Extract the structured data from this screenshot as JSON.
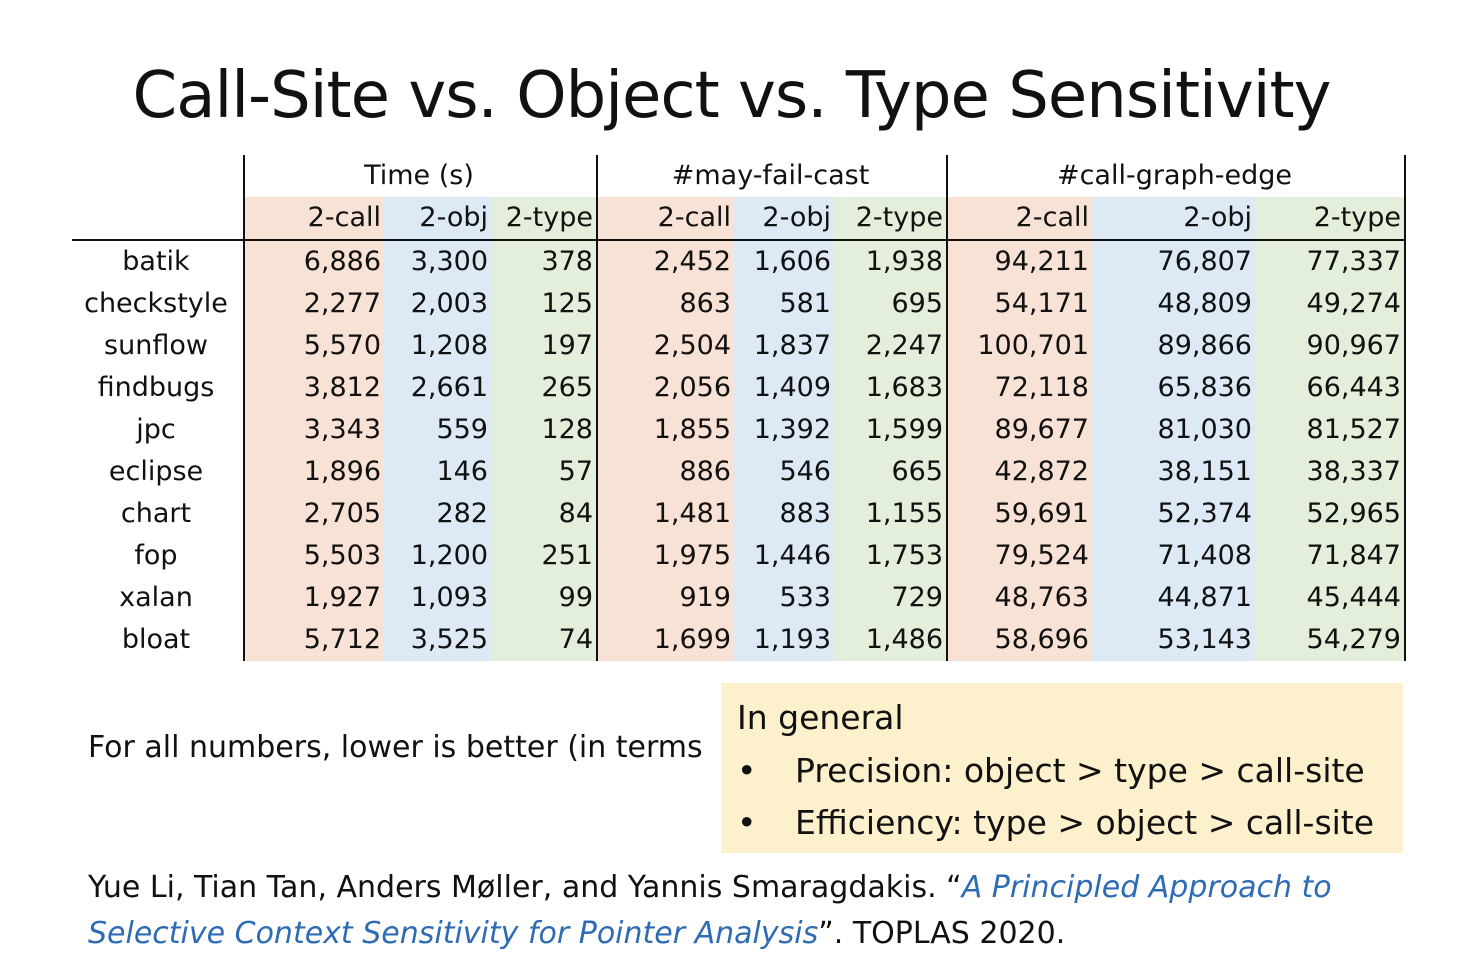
{
  "title": "Call-Site vs. Object vs. Type Sensitivity",
  "table": {
    "groups": [
      "Time (s)",
      "#may-fail-cast",
      "#call-graph-edge"
    ],
    "subheaders": [
      "2-call",
      "2-obj",
      "2-type"
    ],
    "rows": [
      {
        "bench": "batik",
        "vals": [
          "6,886",
          "3,300",
          "378",
          "2,452",
          "1,606",
          "1,938",
          "94,211",
          "76,807",
          "77,337"
        ]
      },
      {
        "bench": "checkstyle",
        "vals": [
          "2,277",
          "2,003",
          "125",
          "863",
          "581",
          "695",
          "54,171",
          "48,809",
          "49,274"
        ]
      },
      {
        "bench": "sunflow",
        "vals": [
          "5,570",
          "1,208",
          "197",
          "2,504",
          "1,837",
          "2,247",
          "100,701",
          "89,866",
          "90,967"
        ]
      },
      {
        "bench": "findbugs",
        "vals": [
          "3,812",
          "2,661",
          "265",
          "2,056",
          "1,409",
          "1,683",
          "72,118",
          "65,836",
          "66,443"
        ]
      },
      {
        "bench": "jpc",
        "vals": [
          "3,343",
          "559",
          "128",
          "1,855",
          "1,392",
          "1,599",
          "89,677",
          "81,030",
          "81,527"
        ]
      },
      {
        "bench": "eclipse",
        "vals": [
          "1,896",
          "146",
          "57",
          "886",
          "546",
          "665",
          "42,872",
          "38,151",
          "38,337"
        ]
      },
      {
        "bench": "chart",
        "vals": [
          "2,705",
          "282",
          "84",
          "1,481",
          "883",
          "1,155",
          "59,691",
          "52,374",
          "52,965"
        ]
      },
      {
        "bench": "fop",
        "vals": [
          "5,503",
          "1,200",
          "251",
          "1,975",
          "1,446",
          "1,753",
          "79,524",
          "71,408",
          "71,847"
        ]
      },
      {
        "bench": "xalan",
        "vals": [
          "1,927",
          "1,093",
          "99",
          "919",
          "533",
          "729",
          "48,763",
          "44,871",
          "45,444"
        ]
      },
      {
        "bench": "bloat",
        "vals": [
          "5,712",
          "3,525",
          "74",
          "1,699",
          "1,193",
          "1,486",
          "58,696",
          "53,143",
          "54,279"
        ]
      }
    ]
  },
  "note": "For all numbers, lower is better (in terms",
  "callout": {
    "title": "In general",
    "bullet": "•",
    "items": [
      "Precision: object > type > call-site",
      "Efficiency: type > object > call-site"
    ]
  },
  "citation": {
    "authors": "Yue Li, Tian Tan, Anders Møller, and Yannis Smaragdakis. “",
    "paper": "A Principled Approach to Selective Context Sensitivity for Pointer Analysis",
    "venue": "”. TOPLAS 2020."
  },
  "colors": {
    "call": "#f8e2d5",
    "obj": "#dee9f6",
    "type": "#e3eedb",
    "callout_bg": "#fcf0cd",
    "link": "#2e6bb5"
  }
}
